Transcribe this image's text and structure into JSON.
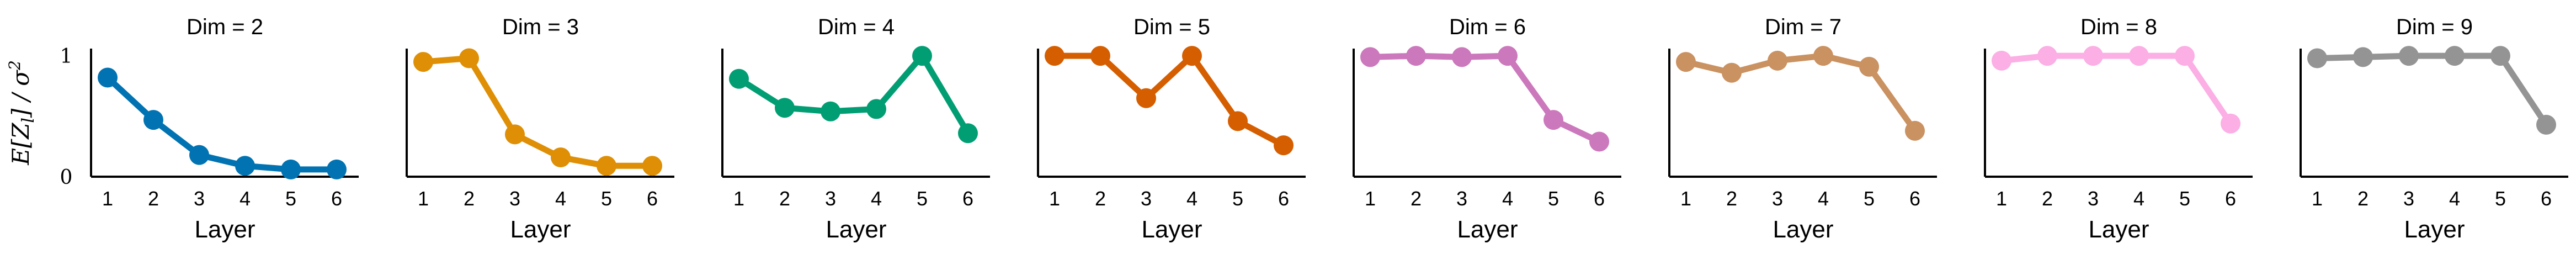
{
  "figure": {
    "ylabel": "E[Z_l] / σ²"
  },
  "chart_data": [
    {
      "type": "line",
      "title": "Dim = 2",
      "xlabel": "Layer",
      "ylabel": "E[Z_l] / σ²",
      "x": [
        1,
        2,
        3,
        4,
        5,
        6
      ],
      "values": [
        0.82,
        0.47,
        0.18,
        0.09,
        0.06,
        0.06
      ],
      "xticks": [
        "1",
        "2",
        "3",
        "4",
        "5",
        "6"
      ],
      "yticks": [
        "0",
        "1"
      ],
      "ylim": [
        0,
        1.06
      ],
      "color": "#0173b2"
    },
    {
      "type": "line",
      "title": "Dim = 3",
      "xlabel": "Layer",
      "x": [
        1,
        2,
        3,
        4,
        5,
        6
      ],
      "values": [
        0.95,
        0.98,
        0.35,
        0.16,
        0.09,
        0.09
      ],
      "xticks": [
        "1",
        "2",
        "3",
        "4",
        "5",
        "6"
      ],
      "ylim": [
        0,
        1.06
      ],
      "color": "#de8f05"
    },
    {
      "type": "line",
      "title": "Dim = 4",
      "xlabel": "Layer",
      "x": [
        1,
        2,
        3,
        4,
        5,
        6
      ],
      "values": [
        0.81,
        0.57,
        0.54,
        0.56,
        1.0,
        0.36
      ],
      "xticks": [
        "1",
        "2",
        "3",
        "4",
        "5",
        "6"
      ],
      "ylim": [
        0,
        1.06
      ],
      "color": "#029e73"
    },
    {
      "type": "line",
      "title": "Dim = 5",
      "xlabel": "Layer",
      "x": [
        1,
        2,
        3,
        4,
        5,
        6
      ],
      "values": [
        1.0,
        1.0,
        0.65,
        1.0,
        0.46,
        0.26
      ],
      "xticks": [
        "1",
        "2",
        "3",
        "4",
        "5",
        "6"
      ],
      "ylim": [
        0,
        1.06
      ],
      "color": "#d55e00"
    },
    {
      "type": "line",
      "title": "Dim = 6",
      "xlabel": "Layer",
      "x": [
        1,
        2,
        3,
        4,
        5,
        6
      ],
      "values": [
        0.99,
        1.0,
        0.99,
        1.0,
        0.47,
        0.29
      ],
      "xticks": [
        "1",
        "2",
        "3",
        "4",
        "5",
        "6"
      ],
      "ylim": [
        0,
        1.06
      ],
      "color": "#cc78bc"
    },
    {
      "type": "line",
      "title": "Dim = 7",
      "xlabel": "Layer",
      "x": [
        1,
        2,
        3,
        4,
        5,
        6
      ],
      "values": [
        0.95,
        0.86,
        0.96,
        1.0,
        0.91,
        0.38
      ],
      "xticks": [
        "1",
        "2",
        "3",
        "4",
        "5",
        "6"
      ],
      "ylim": [
        0,
        1.06
      ],
      "color": "#ca9161"
    },
    {
      "type": "line",
      "title": "Dim = 8",
      "xlabel": "Layer",
      "x": [
        1,
        2,
        3,
        4,
        5,
        6
      ],
      "values": [
        0.96,
        1.0,
        1.0,
        1.0,
        1.0,
        0.44
      ],
      "xticks": [
        "1",
        "2",
        "3",
        "4",
        "5",
        "6"
      ],
      "ylim": [
        0,
        1.06
      ],
      "color": "#fbafe4"
    },
    {
      "type": "line",
      "title": "Dim = 9",
      "xlabel": "Layer",
      "x": [
        1,
        2,
        3,
        4,
        5,
        6
      ],
      "values": [
        0.98,
        0.99,
        1.0,
        1.0,
        1.0,
        0.43
      ],
      "xticks": [
        "1",
        "2",
        "3",
        "4",
        "5",
        "6"
      ],
      "ylim": [
        0,
        1.06
      ],
      "color": "#949494"
    }
  ]
}
